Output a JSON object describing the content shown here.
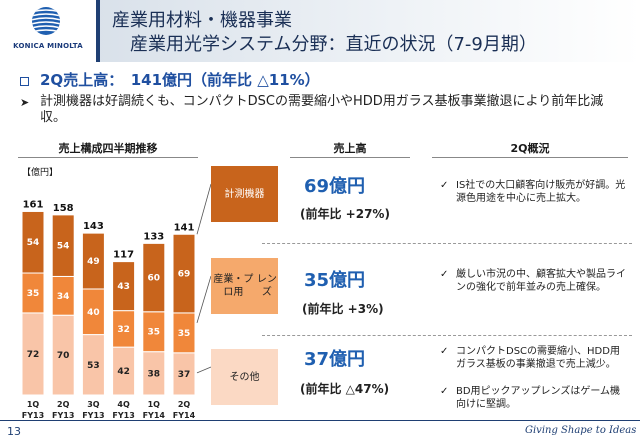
{
  "header": {
    "company": "KONICA MINOLTA",
    "title_line1": "産業用材料・機器事業",
    "title_line2": "産業用光学システム分野：直近の状況（7-9月期）"
  },
  "headline": "2Q売上高：　141億円（前年比 △11%）",
  "subtext": "計測機器は好調続くも、コンパクトDSCの需要縮小やHDD用ガラス基板事業撤退により前年比減収。",
  "column_headers": {
    "chart": "売上構成四半期推移",
    "sales": "売上高",
    "overview": "2Q概況"
  },
  "chart_data": {
    "type": "bar",
    "stacked": true,
    "unit_label": "【億円】",
    "categories": [
      "1Q FY13",
      "2Q FY13",
      "3Q FY13",
      "4Q FY13",
      "1Q FY14",
      "2Q FY14"
    ],
    "category_lines": [
      [
        "1Q",
        "FY13"
      ],
      [
        "2Q",
        "FY13"
      ],
      [
        "3Q",
        "FY13"
      ],
      [
        "4Q",
        "FY13"
      ],
      [
        "1Q",
        "FY14"
      ],
      [
        "2Q",
        "FY14"
      ]
    ],
    "totals": [
      161,
      158,
      143,
      117,
      133,
      141
    ],
    "series": [
      {
        "name": "その他",
        "color": "#f9c5a8",
        "values": [
          72,
          70,
          53,
          42,
          38,
          37
        ]
      },
      {
        "name": "産業・プロ用レンズ",
        "color": "#f0873a",
        "values": [
          35,
          34,
          40,
          32,
          35,
          35
        ]
      },
      {
        "name": "計測機器",
        "color": "#c8641c",
        "values": [
          54,
          54,
          49,
          43,
          60,
          69
        ]
      }
    ]
  },
  "segments": [
    {
      "label": "計測機器",
      "label_lines": [
        "計測機器"
      ],
      "color": "#c8641c",
      "text_color": "#ffffff",
      "sales": "69億円",
      "yoy": "(前年比 +27%)",
      "notes": [
        "IS社での大口顧客向け販売が好調。光源色用途を中心に売上拡大。"
      ]
    },
    {
      "label": "産業・プロ用レンズ",
      "label_lines": [
        "産業・プロ用",
        "レンズ"
      ],
      "color": "#f5a96c",
      "text_color": "#222222",
      "sales": "35億円",
      "yoy": "(前年比 +3%)",
      "notes": [
        "厳しい市況の中、顧客拡大や製品ラインの強化で前年並みの売上確保。"
      ]
    },
    {
      "label": "その他",
      "label_lines": [
        "その他"
      ],
      "color": "#fbd9c4",
      "text_color": "#222222",
      "sales": "37億円",
      "yoy": "(前年比 △47%)",
      "notes": [
        "コンパクトDSCの需要縮小、HDD用ガラス基板の事業撤退で売上減少。",
        "BD用ピックアップレンズはゲーム機向けに堅調。"
      ]
    }
  ],
  "footer": {
    "page_number": "13",
    "tagline": "Giving Shape to Ideas"
  }
}
